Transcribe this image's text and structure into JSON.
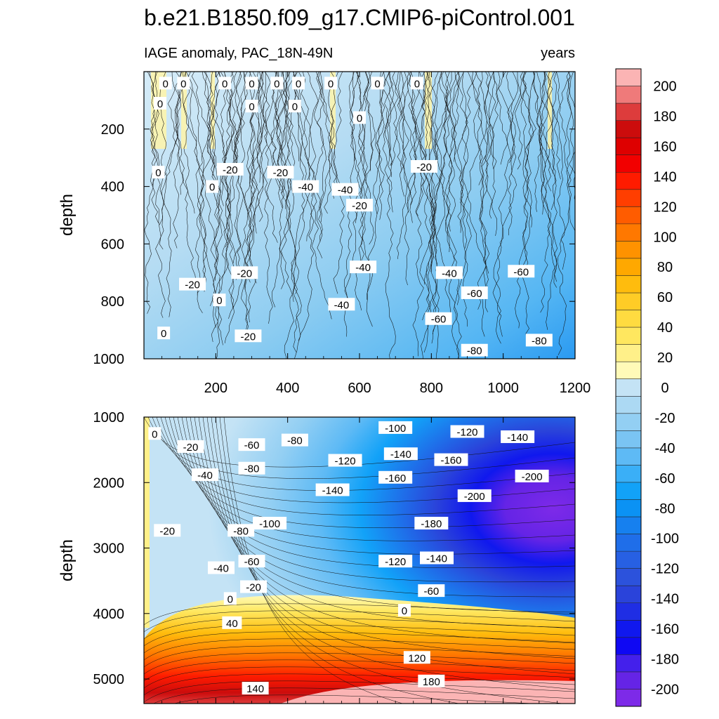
{
  "figure": {
    "title": "b.e21.B1850.f09_g17.CMIP6-piControl.001",
    "left_string": "IAGE anomaly, PAC_18N-49N",
    "right_string": "years"
  },
  "chart_data": [
    {
      "type": "heatmap",
      "panel": "top",
      "ylabel": "depth",
      "ylim": [
        1000,
        0
      ],
      "xlim": [
        0,
        1200
      ],
      "xticks": [
        "200",
        "400",
        "600",
        "800",
        "1000",
        "1200"
      ],
      "yticks": [
        "200",
        "400",
        "600",
        "800",
        "1000"
      ],
      "contour_labels": [
        {
          "text": "0",
          "x": 60,
          "y": 40
        },
        {
          "text": "0",
          "x": 110,
          "y": 40
        },
        {
          "text": "0",
          "x": 225,
          "y": 40
        },
        {
          "text": "0",
          "x": 300,
          "y": 40
        },
        {
          "text": "0",
          "x": 370,
          "y": 40
        },
        {
          "text": "0",
          "x": 430,
          "y": 40
        },
        {
          "text": "0",
          "x": 520,
          "y": 40
        },
        {
          "text": "0",
          "x": 650,
          "y": 40
        },
        {
          "text": "0",
          "x": 760,
          "y": 40
        },
        {
          "text": "0",
          "x": 45,
          "y": 110
        },
        {
          "text": "0",
          "x": 300,
          "y": 120
        },
        {
          "text": "0",
          "x": 420,
          "y": 120
        },
        {
          "text": "0",
          "x": 600,
          "y": 160
        },
        {
          "text": "0",
          "x": 40,
          "y": 350
        },
        {
          "text": "0",
          "x": 190,
          "y": 400
        },
        {
          "text": "0",
          "x": 210,
          "y": 795
        },
        {
          "text": "0",
          "x": 55,
          "y": 910
        },
        {
          "text": "-20",
          "x": 240,
          "y": 340
        },
        {
          "text": "-20",
          "x": 380,
          "y": 350
        },
        {
          "text": "-20",
          "x": 600,
          "y": 465
        },
        {
          "text": "-20",
          "x": 780,
          "y": 330
        },
        {
          "text": "-20",
          "x": 135,
          "y": 740
        },
        {
          "text": "-20",
          "x": 280,
          "y": 700
        },
        {
          "text": "-20",
          "x": 290,
          "y": 920
        },
        {
          "text": "-40",
          "x": 450,
          "y": 400
        },
        {
          "text": "-40",
          "x": 560,
          "y": 410
        },
        {
          "text": "-40",
          "x": 610,
          "y": 680
        },
        {
          "text": "-40",
          "x": 850,
          "y": 700
        },
        {
          "text": "-40",
          "x": 550,
          "y": 810
        },
        {
          "text": "-60",
          "x": 820,
          "y": 860
        },
        {
          "text": "-60",
          "x": 920,
          "y": 770
        },
        {
          "text": "-60",
          "x": 1050,
          "y": 695
        },
        {
          "text": "-80",
          "x": 920,
          "y": 970
        },
        {
          "text": "-80",
          "x": 1100,
          "y": 935
        }
      ]
    },
    {
      "type": "heatmap",
      "panel": "bottom",
      "ylabel": "depth",
      "ylim": [
        5375,
        1000
      ],
      "xlim": [
        0,
        1200
      ],
      "yticks": [
        "1000",
        "2000",
        "3000",
        "4000",
        "5000"
      ],
      "contour_labels": [
        {
          "text": "0",
          "x": 30,
          "y": 1250
        },
        {
          "text": "-20",
          "x": 130,
          "y": 1450
        },
        {
          "text": "-40",
          "x": 170,
          "y": 1880
        },
        {
          "text": "-60",
          "x": 300,
          "y": 1420
        },
        {
          "text": "-80",
          "x": 300,
          "y": 1780
        },
        {
          "text": "-80",
          "x": 420,
          "y": 1350
        },
        {
          "text": "-100",
          "x": 700,
          "y": 1160
        },
        {
          "text": "-120",
          "x": 900,
          "y": 1220
        },
        {
          "text": "-140",
          "x": 1040,
          "y": 1300
        },
        {
          "text": "-120",
          "x": 560,
          "y": 1660
        },
        {
          "text": "-140",
          "x": 715,
          "y": 1560
        },
        {
          "text": "-160",
          "x": 855,
          "y": 1650
        },
        {
          "text": "-160",
          "x": 700,
          "y": 1920
        },
        {
          "text": "-140",
          "x": 525,
          "y": 2110
        },
        {
          "text": "-200",
          "x": 920,
          "y": 2200
        },
        {
          "text": "-200",
          "x": 1080,
          "y": 1900
        },
        {
          "text": "-180",
          "x": 800,
          "y": 2620
        },
        {
          "text": "-20",
          "x": 65,
          "y": 2730
        },
        {
          "text": "-80",
          "x": 270,
          "y": 2730
        },
        {
          "text": "-100",
          "x": 350,
          "y": 2620
        },
        {
          "text": "-40",
          "x": 215,
          "y": 3300
        },
        {
          "text": "-60",
          "x": 300,
          "y": 3200
        },
        {
          "text": "-120",
          "x": 700,
          "y": 3200
        },
        {
          "text": "-140",
          "x": 815,
          "y": 3150
        },
        {
          "text": "-20",
          "x": 305,
          "y": 3590
        },
        {
          "text": "-60",
          "x": 800,
          "y": 3650
        },
        {
          "text": "0",
          "x": 240,
          "y": 3770
        },
        {
          "text": "0",
          "x": 725,
          "y": 3950
        },
        {
          "text": "40",
          "x": 245,
          "y": 4140
        },
        {
          "text": "120",
          "x": 760,
          "y": 4670
        },
        {
          "text": "180",
          "x": 800,
          "y": 5030
        },
        {
          "text": "140",
          "x": 310,
          "y": 5140
        }
      ]
    }
  ],
  "colorbar": {
    "labels": [
      "200",
      "180",
      "160",
      "140",
      "120",
      "100",
      "80",
      "60",
      "40",
      "20",
      "0",
      "-20",
      "-40",
      "-60",
      "-80",
      "-100",
      "-120",
      "-140",
      "-160",
      "-180",
      "-200"
    ],
    "colors": [
      "#fbb4b4",
      "#ef7a7a",
      "#dd3c3c",
      "#cc0c0c",
      "#de0000",
      "#f20000",
      "#ff1b00",
      "#ff3e00",
      "#ff5c00",
      "#ff7800",
      "#ff9200",
      "#ffa800",
      "#ffbc0d",
      "#ffcc26",
      "#ffdb40",
      "#ffe75f",
      "#fff089",
      "#fffab8",
      "#c4e3f5",
      "#acd9f3",
      "#93cff3",
      "#7ac4f3",
      "#5ebaf5",
      "#3aaff7",
      "#12a2f8",
      "#0b92f4",
      "#1680ef",
      "#1f6ee9",
      "#2760e3",
      "#2c52dc",
      "#2a43da",
      "#1f2ee4",
      "#1018ee",
      "#0f08f3",
      "#4420eb",
      "#6524e6",
      "#7d2ae8"
    ]
  }
}
